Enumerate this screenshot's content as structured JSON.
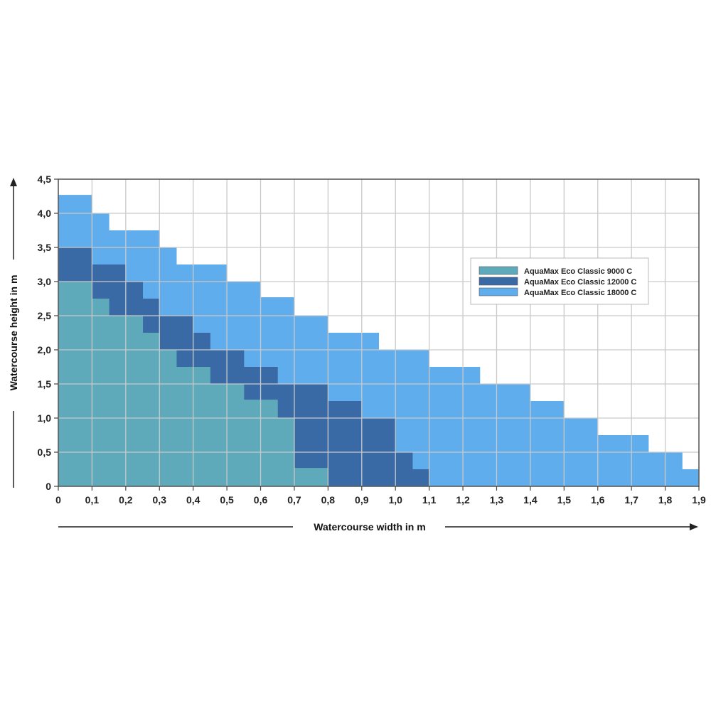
{
  "chart_data": {
    "type": "area",
    "title": "",
    "xlabel": "Watercourse width in m",
    "ylabel": "Watercourse height  in m",
    "xlim": [
      0,
      1.9
    ],
    "ylim": [
      0,
      4.5
    ],
    "x_ticks": [
      0,
      0.1,
      0.2,
      0.3,
      0.4,
      0.5,
      0.6,
      0.7,
      0.8,
      0.9,
      1.0,
      1.1,
      1.2,
      1.3,
      1.4,
      1.5,
      1.6,
      1.7,
      1.8,
      1.9
    ],
    "x_tick_labels": [
      "0",
      "0,1",
      "0,2",
      "0,3",
      "0,4",
      "0,5",
      "0,6",
      "0,7",
      "0,8",
      "0,9",
      "1,0",
      "1,1",
      "1,2",
      "1,3",
      "1,4",
      "1,5",
      "1,6",
      "1,7",
      "1,8",
      "1,9"
    ],
    "y_ticks": [
      0,
      0.5,
      1.0,
      1.5,
      2.0,
      2.5,
      3.0,
      3.5,
      4.0,
      4.5
    ],
    "y_tick_labels": [
      "0",
      "0,5",
      "1,0",
      "1,5",
      "2,0",
      "2,5",
      "3,0",
      "3,5",
      "4,0",
      "4,5"
    ],
    "grid": true,
    "legend_position": "right",
    "series": [
      {
        "name": "AquaMax Eco Classic 18000 C",
        "color": "#60aded",
        "steps": [
          [
            0,
            0.1,
            4.27
          ],
          [
            0.1,
            0.15,
            4.0
          ],
          [
            0.15,
            0.3,
            3.75
          ],
          [
            0.3,
            0.35,
            3.5
          ],
          [
            0.35,
            0.5,
            3.25
          ],
          [
            0.5,
            0.6,
            3.0
          ],
          [
            0.6,
            0.7,
            2.77
          ],
          [
            0.7,
            0.8,
            2.5
          ],
          [
            0.8,
            0.95,
            2.25
          ],
          [
            0.95,
            1.1,
            2.0
          ],
          [
            1.1,
            1.25,
            1.75
          ],
          [
            1.25,
            1.4,
            1.5
          ],
          [
            1.4,
            1.5,
            1.25
          ],
          [
            1.5,
            1.6,
            1.0
          ],
          [
            1.6,
            1.75,
            0.75
          ],
          [
            1.75,
            1.85,
            0.5
          ],
          [
            1.85,
            1.9,
            0.25
          ]
        ]
      },
      {
        "name": "AquaMax Eco Classic 12000 C",
        "color": "#3a6aa6",
        "steps": [
          [
            0,
            0.1,
            3.5
          ],
          [
            0.1,
            0.2,
            3.25
          ],
          [
            0.2,
            0.25,
            3.0
          ],
          [
            0.25,
            0.3,
            2.75
          ],
          [
            0.3,
            0.4,
            2.5
          ],
          [
            0.4,
            0.45,
            2.25
          ],
          [
            0.45,
            0.55,
            2.0
          ],
          [
            0.55,
            0.6,
            1.75
          ],
          [
            0.6,
            0.65,
            1.75
          ],
          [
            0.65,
            0.8,
            1.5
          ],
          [
            0.8,
            0.9,
            1.25
          ],
          [
            0.9,
            1.0,
            1.0
          ],
          [
            1.0,
            1.05,
            0.5
          ],
          [
            1.05,
            1.1,
            0.25
          ]
        ]
      },
      {
        "name": "AquaMax Eco Classic 9000 C",
        "color": "#5ea9ba",
        "steps": [
          [
            0,
            0.1,
            3.0
          ],
          [
            0.1,
            0.15,
            2.75
          ],
          [
            0.15,
            0.25,
            2.5
          ],
          [
            0.25,
            0.3,
            2.25
          ],
          [
            0.3,
            0.35,
            2.0
          ],
          [
            0.35,
            0.45,
            1.75
          ],
          [
            0.45,
            0.5,
            1.5
          ],
          [
            0.5,
            0.55,
            1.5
          ],
          [
            0.55,
            0.65,
            1.27
          ],
          [
            0.65,
            0.7,
            1.0
          ],
          [
            0.7,
            0.8,
            0.27
          ]
        ]
      }
    ],
    "legend": [
      {
        "label": "AquaMax Eco Classic 9000 C",
        "color": "#5ea9ba"
      },
      {
        "label": "AquaMax Eco Classic 12000 C",
        "color": "#3a6aa6"
      },
      {
        "label": "AquaMax Eco Classic 18000 C",
        "color": "#60aded"
      }
    ]
  }
}
